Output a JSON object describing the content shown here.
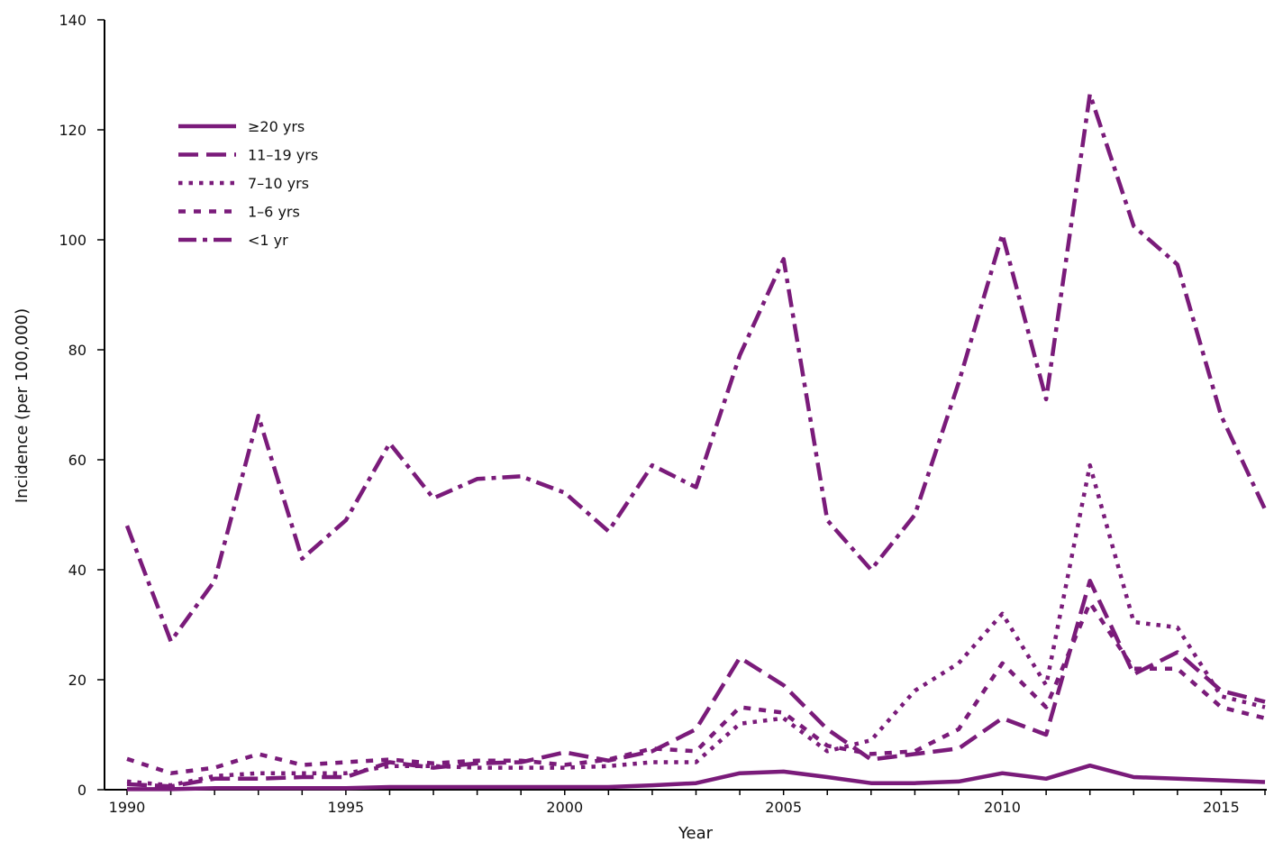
{
  "chart_data": {
    "type": "line",
    "title": "",
    "xlabel": "Year",
    "ylabel": "Incidence (per 100,000)",
    "xlim": [
      1990,
      2016
    ],
    "ylim": [
      0,
      140
    ],
    "x_ticks": [
      1990,
      1995,
      2000,
      2005,
      2010,
      2015
    ],
    "y_ticks": [
      0,
      20,
      40,
      60,
      80,
      100,
      120,
      140
    ],
    "grid": false,
    "legend_position": "top-left",
    "series_color": "#7a1b7a",
    "x": [
      1990,
      1991,
      1992,
      1993,
      1994,
      1995,
      1996,
      1997,
      1998,
      1999,
      2000,
      2001,
      2002,
      2003,
      2004,
      2005,
      2006,
      2007,
      2008,
      2009,
      2010,
      2011,
      2012,
      2013,
      2014,
      2015,
      2016
    ],
    "series": [
      {
        "name": "≥20 yrs",
        "style": "solid",
        "values": [
          0.1,
          0.1,
          0.3,
          0.3,
          0.3,
          0.3,
          0.5,
          0.5,
          0.5,
          0.5,
          0.5,
          0.5,
          0.8,
          1.2,
          3.0,
          3.3,
          2.3,
          1.2,
          1.2,
          1.5,
          3.0,
          2.0,
          4.4,
          2.3,
          2.0,
          1.7,
          1.4
        ]
      },
      {
        "name": "11–19 yrs",
        "style": "long-dash",
        "values": [
          1.0,
          0.6,
          2.0,
          2.0,
          2.3,
          2.3,
          5.0,
          4.0,
          4.8,
          5.0,
          6.8,
          5.3,
          7.0,
          11.0,
          24.0,
          19.0,
          11.0,
          5.5,
          6.5,
          7.5,
          13.0,
          10.0,
          38.0,
          21.0,
          25.0,
          18.0,
          16.0
        ]
      },
      {
        "name": "7–10 yrs",
        "style": "dotted",
        "values": [
          1.5,
          0.8,
          2.5,
          3.0,
          3.0,
          3.0,
          4.3,
          4.3,
          4.0,
          4.0,
          4.0,
          4.3,
          5.0,
          5.0,
          12.0,
          13.0,
          7.0,
          9.0,
          18.0,
          23.0,
          32.0,
          19.0,
          59.0,
          30.5,
          29.5,
          17.0,
          15.0
        ]
      },
      {
        "name": "1–6 yrs",
        "style": "short-dash",
        "values": [
          5.6,
          3.0,
          4.0,
          6.5,
          4.5,
          5.0,
          5.5,
          4.8,
          5.3,
          5.3,
          4.5,
          5.5,
          7.5,
          7.0,
          15.0,
          14.0,
          8.0,
          6.5,
          7.0,
          11.0,
          23.0,
          15.0,
          34.0,
          22.0,
          22.0,
          15.0,
          13.0
        ]
      },
      {
        "name": "<1 yr",
        "style": "dash-dot",
        "values": [
          48.0,
          27.0,
          38.0,
          68.0,
          42.0,
          49.0,
          63.0,
          53.0,
          56.5,
          57.0,
          54.0,
          47.0,
          59.0,
          55.0,
          79.0,
          96.5,
          49.0,
          40.0,
          50.0,
          74.0,
          101.0,
          71.0,
          126.5,
          102.5,
          95.5,
          68.0,
          51.0
        ]
      }
    ]
  }
}
